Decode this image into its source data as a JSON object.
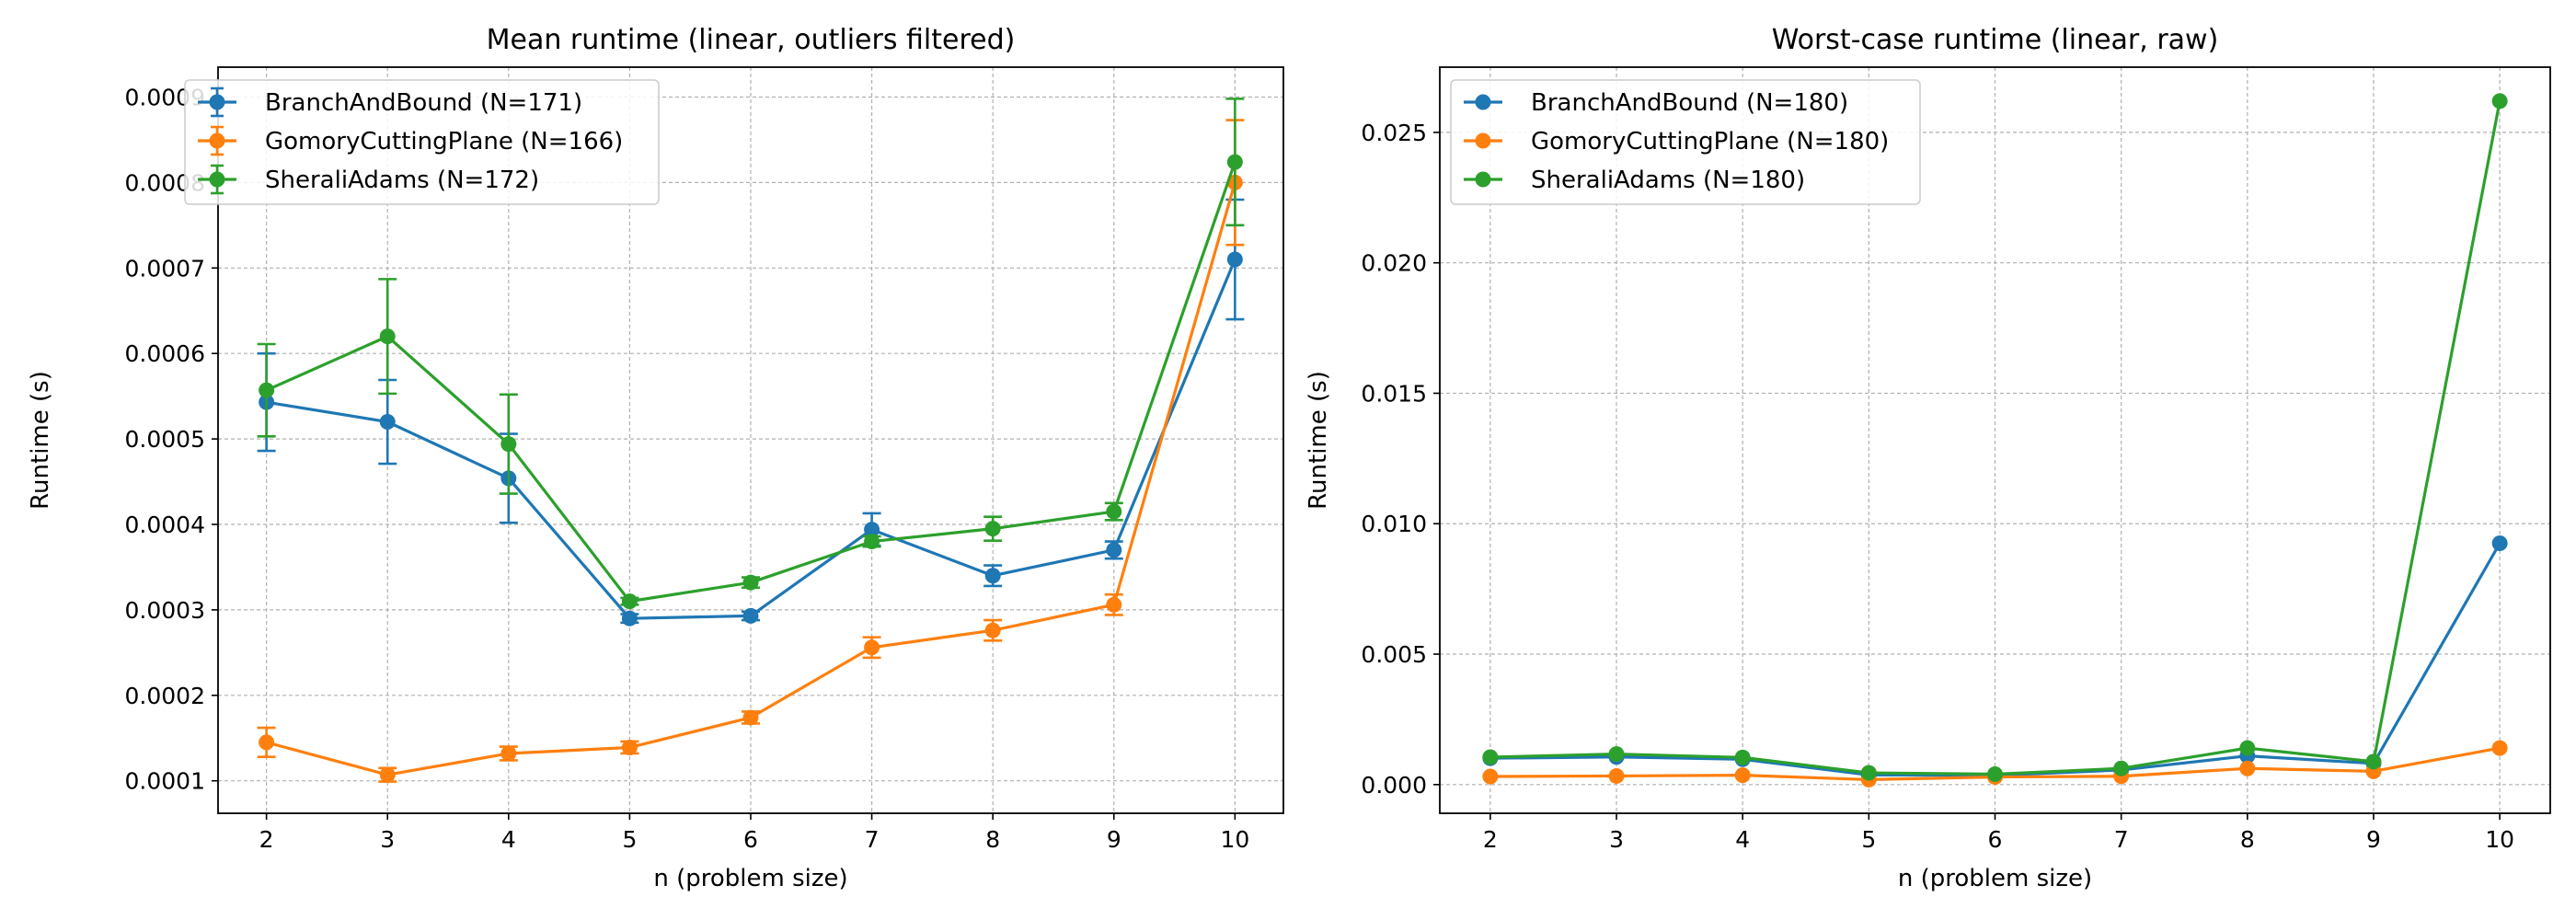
{
  "chart_data": [
    {
      "type": "line",
      "title": "Mean runtime (linear, outliers filtered)",
      "xlabel": "n (problem size)",
      "ylabel": "Runtime (s)",
      "x": [
        2,
        3,
        4,
        5,
        6,
        7,
        8,
        9,
        10
      ],
      "xlim": [
        1.6,
        10.4
      ],
      "ylim": [
        6.2e-05,
        0.000935
      ],
      "xticks": [
        2,
        3,
        4,
        5,
        6,
        7,
        8,
        9,
        10
      ],
      "yticks": [
        0.0001,
        0.0002,
        0.0003,
        0.0004,
        0.0005,
        0.0006,
        0.0007,
        0.0008,
        0.0009
      ],
      "ytick_labels": [
        "0.0001",
        "0.0002",
        "0.0003",
        "0.0004",
        "0.0005",
        "0.0006",
        "0.0007",
        "0.0008",
        "0.0009"
      ],
      "xtick_labels": [
        "2",
        "3",
        "4",
        "5",
        "6",
        "7",
        "8",
        "9",
        "10"
      ],
      "grid": true,
      "legend_position": "top-left",
      "error_bars": true,
      "series": [
        {
          "name": "BranchAndBound (N=171)",
          "color": "#1f77b4",
          "values": [
            0.000543,
            0.00052,
            0.000454,
            0.00029,
            0.000293,
            0.000394,
            0.00034,
            0.00037,
            0.00071
          ],
          "errors": [
            5.7e-05,
            4.9e-05,
            5.2e-05,
            5e-06,
            5e-06,
            1.9e-05,
            1.2e-05,
            1e-05,
            7e-05
          ]
        },
        {
          "name": "GomoryCuttingPlane (N=166)",
          "color": "#ff7f0e",
          "values": [
            0.000145,
            0.000107,
            0.000132,
            0.000139,
            0.000174,
            0.000256,
            0.000276,
            0.000306,
            0.0008
          ],
          "errors": [
            1.7e-05,
            8e-06,
            8e-06,
            7e-06,
            7e-06,
            1.2e-05,
            1.2e-05,
            1.2e-05,
            7.3e-05
          ]
        },
        {
          "name": "SheraliAdams (N=172)",
          "color": "#2ca02c",
          "values": [
            0.000557,
            0.00062,
            0.000494,
            0.00031,
            0.000332,
            0.00038,
            0.000395,
            0.000415,
            0.000824
          ],
          "errors": [
            5.4e-05,
            6.7e-05,
            5.8e-05,
            4e-06,
            6e-06,
            6e-06,
            1.4e-05,
            1e-05,
            7.4e-05
          ]
        }
      ]
    },
    {
      "type": "line",
      "title": "Worst-case runtime (linear, raw)",
      "xlabel": "n (problem size)",
      "ylabel": "Runtime (s)",
      "x": [
        2,
        3,
        4,
        5,
        6,
        7,
        8,
        9,
        10
      ],
      "xlim": [
        1.6,
        10.4
      ],
      "ylim": [
        -0.0011,
        0.0275
      ],
      "xticks": [
        2,
        3,
        4,
        5,
        6,
        7,
        8,
        9,
        10
      ],
      "yticks": [
        0,
        0.005,
        0.01,
        0.015,
        0.02,
        0.025
      ],
      "ytick_labels": [
        "0.000",
        "0.005",
        "0.010",
        "0.015",
        "0.020",
        "0.025"
      ],
      "xtick_labels": [
        "2",
        "3",
        "4",
        "5",
        "6",
        "7",
        "8",
        "9",
        "10"
      ],
      "grid": true,
      "legend_position": "top-left",
      "error_bars": false,
      "series": [
        {
          "name": "BranchAndBound (N=180)",
          "color": "#1f77b4",
          "values": [
            0.00101,
            0.00106,
            0.00097,
            0.00037,
            0.00035,
            0.00056,
            0.0011,
            0.00081,
            0.00925
          ]
        },
        {
          "name": "GomoryCuttingPlane (N=180)",
          "color": "#ff7f0e",
          "values": [
            0.00031,
            0.00033,
            0.00036,
            0.00019,
            0.00029,
            0.00032,
            0.00062,
            0.00051,
            0.0014
          ]
        },
        {
          "name": "SheraliAdams (N=180)",
          "color": "#2ca02c",
          "values": [
            0.00105,
            0.00117,
            0.00104,
            0.00045,
            0.0004,
            0.00062,
            0.0014,
            0.00088,
            0.0262
          ]
        }
      ]
    }
  ]
}
